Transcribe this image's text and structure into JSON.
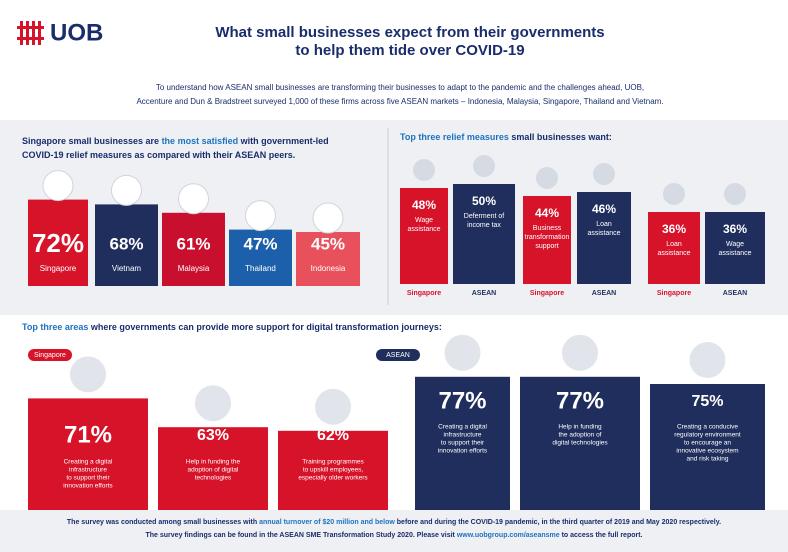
{
  "logo": "UOB",
  "title": [
    "What small businesses expect from their governments",
    "to help them tide over COVID-19"
  ],
  "intro": [
    "To understand how ASEAN small businesses are transforming their businesses to adapt to the pandemic and the challenges ahead, UOB,",
    "Accenture and Dun & Bradstreet surveyed 1,000 of these firms across five ASEAN markets – Indonesia, Malaysia, Singapore, Thailand and Vietnam."
  ],
  "satisfaction": {
    "heading": [
      [
        {
          "text": "Singapore small businesses are ",
          "color": "#1a2d6b"
        },
        {
          "text": "the most satisfied",
          "color": "#1e73be"
        },
        {
          "text": " with government-led",
          "color": "#1a2d6b"
        }
      ],
      [
        {
          "text": "COVID-19 relief measures as compared with their ASEAN peers.",
          "color": "#1a2d6b"
        }
      ]
    ],
    "bars": [
      {
        "name": "Singapore",
        "value": 72,
        "label": "72%",
        "color": "#d7132a"
      },
      {
        "name": "Vietnam",
        "value": 68,
        "label": "68%",
        "color": "#1f2e5c"
      },
      {
        "name": "Malaysia",
        "value": 61,
        "label": "61%",
        "color": "#c8102e"
      },
      {
        "name": "Thailand",
        "value": 47,
        "label": "47%",
        "color": "#1c5faa"
      },
      {
        "name": "Indonesia",
        "value": 45,
        "label": "45%",
        "color": "#e8505b"
      }
    ]
  },
  "relief": {
    "heading": [
      {
        "text": "Top three relief measures",
        "color": "#1e73be"
      },
      {
        "text": " small businesses want:",
        "color": "#1a2d6b"
      }
    ],
    "bars": [
      {
        "market": "Singapore",
        "value": 48,
        "label": "48%",
        "desc": [
          "Wage",
          "assistance"
        ],
        "color": "#d7132a"
      },
      {
        "market": "ASEAN",
        "value": 50,
        "label": "50%",
        "desc": [
          "Deferment of",
          "income tax"
        ],
        "color": "#1f2e5c"
      },
      {
        "market": "Singapore",
        "value": 44,
        "label": "44%",
        "desc": [
          "Business",
          "transformation",
          "support"
        ],
        "color": "#d7132a"
      },
      {
        "market": "ASEAN",
        "value": 46,
        "label": "46%",
        "desc": [
          "Loan",
          "assistance"
        ],
        "color": "#1f2e5c"
      },
      {
        "market": "Singapore",
        "value": 36,
        "label": "36%",
        "desc": [
          "Loan",
          "assistance"
        ],
        "color": "#d7132a"
      },
      {
        "market": "ASEAN",
        "value": 36,
        "label": "36%",
        "desc": [
          "Wage",
          "assistance"
        ],
        "color": "#1f2e5c"
      }
    ]
  },
  "digital": {
    "heading": [
      {
        "text": "Top three areas",
        "color": "#1e73be"
      },
      {
        "text": " where governments can provide more support for digital transformation journeys:",
        "color": "#1a2d6b"
      }
    ],
    "groups": [
      {
        "tag": "Singapore",
        "color": "#d7132a",
        "items": [
          {
            "value": 71,
            "label": "71%",
            "desc": [
              "Creating a digital",
              "infrastructure",
              "to support their",
              "innovation efforts"
            ]
          },
          {
            "value": 63,
            "label": "63%",
            "desc": [
              "Help in funding the",
              "adoption of digital",
              "technologies"
            ]
          },
          {
            "value": 62,
            "label": "62%",
            "desc": [
              "Training programmes",
              "to upskill employees,",
              "especially older workers"
            ]
          }
        ]
      },
      {
        "tag": "ASEAN",
        "color": "#1f2e5c",
        "items": [
          {
            "value": 77,
            "label": "77%",
            "desc": [
              "Creating a digital",
              "infrastructure",
              "to support their",
              "innovation efforts"
            ]
          },
          {
            "value": 77,
            "label": "77%",
            "desc": [
              "Help in funding",
              "the adoption of",
              "digital technologies"
            ]
          },
          {
            "value": 75,
            "label": "75%",
            "desc": [
              "Creating a conducive",
              "regulatory environment",
              "to encourage an",
              "innovative ecosystem",
              "and risk taking"
            ]
          }
        ]
      }
    ]
  },
  "footer": [
    [
      {
        "text": "The survey was conducted among small businesses with ",
        "color": "#1a2d6b"
      },
      {
        "text": "annual turnover of $20 million and below",
        "color": "#1e73be"
      },
      {
        "text": " before and during the COVID-19 pandemic, in the third quarter of 2019 and May 2020 respectively.",
        "color": "#1a2d6b"
      }
    ],
    [
      {
        "text": "The survey findings can be found in the ASEAN SME Transformation Study 2020. Please visit ",
        "color": "#1a2d6b"
      },
      {
        "text": "www.uobgroup.com/aseansme",
        "color": "#1e73be"
      },
      {
        "text": " to access the full report.",
        "color": "#1a2d6b"
      }
    ]
  ]
}
